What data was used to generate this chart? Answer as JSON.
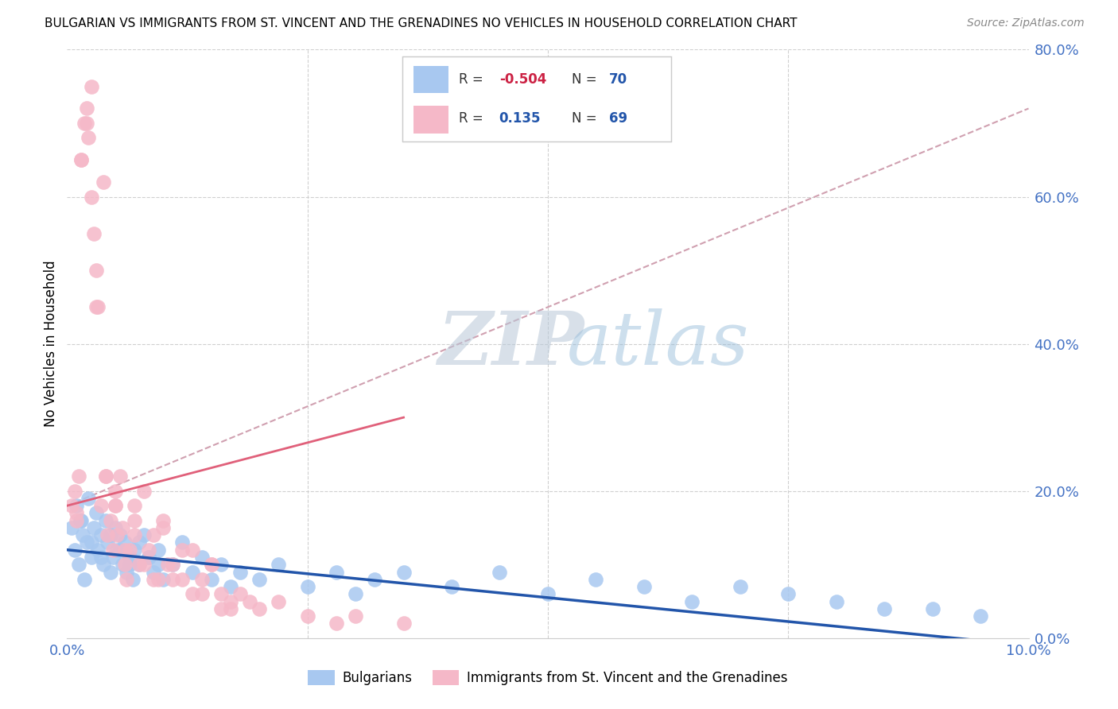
{
  "title": "BULGARIAN VS IMMIGRANTS FROM ST. VINCENT AND THE GRENADINES NO VEHICLES IN HOUSEHOLD CORRELATION CHART",
  "source": "Source: ZipAtlas.com",
  "ylabel": "No Vehicles in Household",
  "xlim": [
    0.0,
    10.0
  ],
  "ylim": [
    0.0,
    80.0
  ],
  "legend_blue_r": "-0.504",
  "legend_blue_n": "70",
  "legend_pink_r": "0.135",
  "legend_pink_n": "69",
  "blue_color": "#a8c8f0",
  "pink_color": "#f5b8c8",
  "trend_blue_color": "#2255aa",
  "trend_pink_solid_color": "#e0607a",
  "trend_pink_dashed_color": "#d0a0b0",
  "watermark_zip_color": "#c8d8e8",
  "watermark_atlas_color": "#b8cce0",
  "background_color": "#ffffff",
  "grid_color": "#d0d0d0",
  "title_color": "#000000",
  "axis_label_color": "#4472c4",
  "blue_x": [
    0.05,
    0.08,
    0.1,
    0.12,
    0.14,
    0.16,
    0.18,
    0.2,
    0.22,
    0.25,
    0.28,
    0.3,
    0.32,
    0.35,
    0.38,
    0.4,
    0.42,
    0.45,
    0.48,
    0.5,
    0.52,
    0.55,
    0.58,
    0.6,
    0.62,
    0.65,
    0.68,
    0.7,
    0.75,
    0.8,
    0.85,
    0.9,
    0.95,
    1.0,
    1.1,
    1.2,
    1.3,
    1.4,
    1.5,
    1.6,
    1.7,
    1.8,
    2.0,
    2.2,
    2.5,
    2.8,
    3.0,
    3.2,
    3.5,
    4.0,
    4.5,
    5.0,
    5.5,
    6.0,
    6.5,
    7.0,
    7.5,
    8.0,
    8.5,
    9.0,
    9.5,
    0.15,
    0.25,
    0.35,
    0.45,
    0.55,
    0.65,
    0.75,
    0.85,
    0.95
  ],
  "blue_y": [
    15,
    12,
    18,
    10,
    16,
    14,
    8,
    13,
    19,
    11,
    15,
    17,
    12,
    14,
    10,
    16,
    13,
    9,
    11,
    15,
    12,
    14,
    10,
    13,
    9,
    11,
    8,
    12,
    10,
    14,
    11,
    9,
    12,
    8,
    10,
    13,
    9,
    11,
    8,
    10,
    7,
    9,
    8,
    10,
    7,
    9,
    6,
    8,
    9,
    7,
    9,
    6,
    8,
    7,
    5,
    7,
    6,
    5,
    4,
    4,
    3,
    16,
    13,
    11,
    14,
    12,
    10,
    13,
    11,
    10
  ],
  "pink_x": [
    0.05,
    0.08,
    0.1,
    0.12,
    0.15,
    0.18,
    0.2,
    0.22,
    0.25,
    0.25,
    0.28,
    0.3,
    0.32,
    0.35,
    0.38,
    0.4,
    0.42,
    0.45,
    0.48,
    0.5,
    0.5,
    0.52,
    0.55,
    0.58,
    0.6,
    0.62,
    0.65,
    0.7,
    0.7,
    0.75,
    0.8,
    0.85,
    0.9,
    0.95,
    1.0,
    1.05,
    1.1,
    1.2,
    1.3,
    1.4,
    1.5,
    1.6,
    1.7,
    1.8,
    1.9,
    2.0,
    2.2,
    2.5,
    2.8,
    3.0,
    3.5,
    0.1,
    0.15,
    0.2,
    0.3,
    0.4,
    0.5,
    0.6,
    0.7,
    0.8,
    0.9,
    1.0,
    1.1,
    1.2,
    1.3,
    1.4,
    1.5,
    1.6,
    1.7
  ],
  "pink_y": [
    18,
    20,
    16,
    22,
    65,
    70,
    72,
    68,
    75,
    60,
    55,
    50,
    45,
    18,
    62,
    22,
    14,
    16,
    12,
    18,
    20,
    14,
    22,
    15,
    10,
    8,
    12,
    18,
    16,
    10,
    20,
    12,
    14,
    8,
    16,
    10,
    8,
    12,
    6,
    8,
    10,
    6,
    4,
    6,
    5,
    4,
    5,
    3,
    2,
    3,
    2,
    17,
    65,
    70,
    45,
    22,
    18,
    12,
    14,
    10,
    8,
    15,
    10,
    8,
    12,
    6,
    10,
    4,
    5
  ]
}
